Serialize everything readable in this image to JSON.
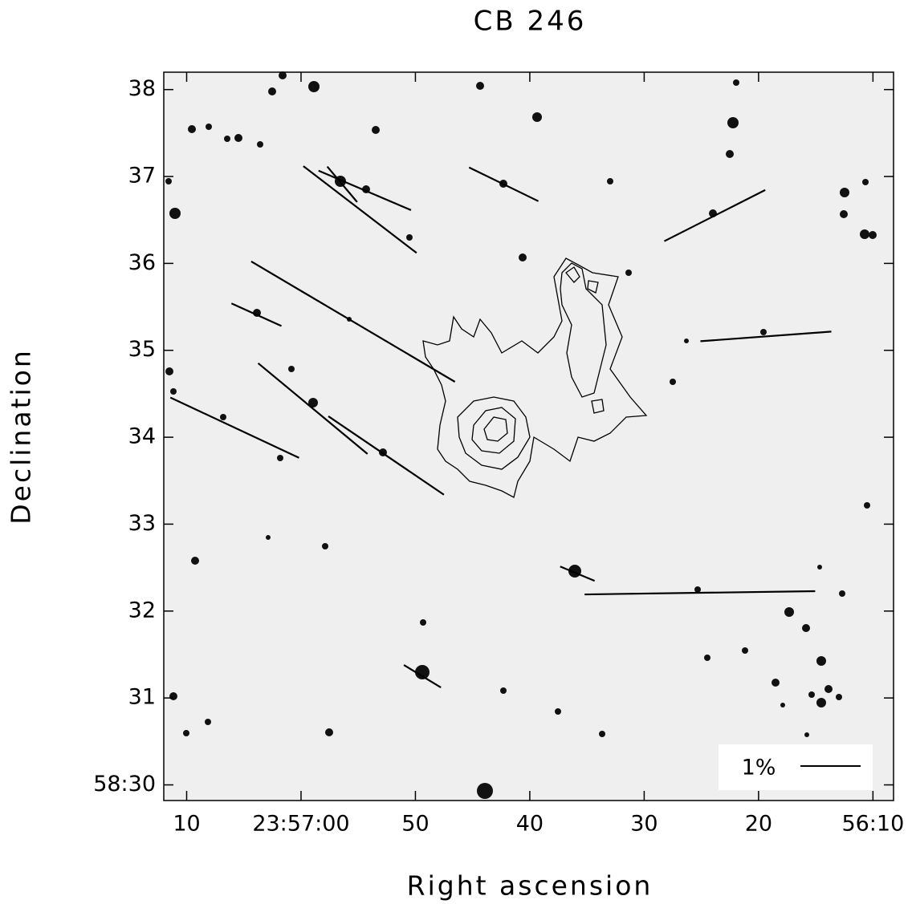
{
  "chart_data": {
    "type": "vector",
    "title": "CB 246",
    "x_label": "Right ascension",
    "y_label": "Declination",
    "xlim": [
      72,
      8.2
    ],
    "ylim": [
      29.82,
      38.2
    ],
    "xticks": [
      {
        "value": 70,
        "label": "10"
      },
      {
        "value": 60,
        "label": "23:57:00"
      },
      50,
      40,
      30,
      20,
      {
        "value": 10,
        "label": "56:10"
      }
    ],
    "yticks": [
      {
        "value": 30,
        "label": "58:30"
      },
      31,
      32,
      33,
      34,
      35,
      36,
      37,
      38
    ],
    "scale_label": "1%",
    "scale_value": 1,
    "color": "#000000",
    "x": [
      54.85,
      54.43,
      56.4,
      42.28,
      23.83,
      55.45,
      63.9,
      19.36,
      65.8,
      58.97,
      52.56,
      35.84,
      25.13,
      49.39
    ],
    "y": [
      36.62,
      36.84,
      36.91,
      36.91,
      36.55,
      35.33,
      35.41,
      35.16,
      34.11,
      34.33,
      33.79,
      32.43,
      32.21,
      31.25
    ],
    "polarization": [
      2.37,
      1.67,
      0.77,
      1.28,
      1.88,
      3.93,
      0.91,
      2.18,
      2.36,
      2.36,
      2.32,
      0.62,
      3.83,
      0.72
    ],
    "angle": [
      52.5,
      66.9,
      40.1,
      64.0,
      116.9,
      59.4,
      65.7,
      94.2,
      64.9,
      50.3,
      55.8,
      67.3,
      90.8,
      58.7
    ]
  }
}
